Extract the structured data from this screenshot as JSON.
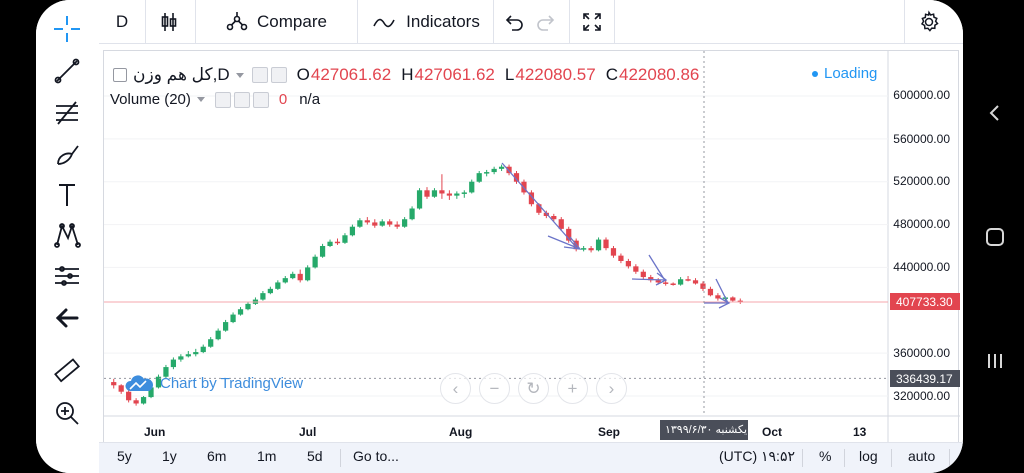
{
  "top_toolbar": {
    "interval": "D",
    "compare_label": "Compare",
    "indicators_label": "Indicators"
  },
  "legend": {
    "symbol_name": "کل هم وزن",
    "interval": "D",
    "open_key": "O",
    "open_val": "427061.62",
    "high_key": "H",
    "high_val": "427061.62",
    "low_key": "L",
    "low_val": "422080.57",
    "close_key": "C",
    "close_val": "422080.86",
    "loading_label": "Loading",
    "volume_label": "Volume (20)",
    "volume_value": "0",
    "volume_na": "n/a"
  },
  "price_axis": {
    "labels": [
      "600000.00",
      "560000.00",
      "520000.00",
      "480000.00",
      "440000.00",
      "360000.00",
      "320000.00"
    ],
    "current_price": "407733.30",
    "crosshair_price": "336439.17"
  },
  "time_axis": {
    "labels": [
      "Jun",
      "Jul",
      "Aug",
      "Sep",
      "Oct",
      "13"
    ],
    "crosshair_date": "یکشنبه ۱۳۹۹/۶/۳۰"
  },
  "watermark": {
    "text": "Chart by TradingView"
  },
  "bottom_bar": {
    "ranges": [
      "5y",
      "1y",
      "6m",
      "1m",
      "5d"
    ],
    "goto_label": "Go to...",
    "clock": "۱۹:۵۲ (UTC)",
    "percent_label": "%",
    "log_label": "log",
    "auto_label": "auto"
  },
  "colors": {
    "up": "#26a96a",
    "down": "#e2454f",
    "accent": "#2196f3",
    "arrow": "#6b74c8",
    "price_line": "#f4a7ac"
  },
  "chart_data": {
    "type": "candlestick",
    "ylim": [
      300000,
      620000
    ],
    "y_ticks": [
      320000,
      360000,
      440000,
      480000,
      520000,
      560000,
      600000
    ],
    "last_price": 407733.3,
    "crosshair_price": 336439.17,
    "candles": [
      [
        333000,
        336000,
        327000,
        330000
      ],
      [
        330000,
        331000,
        322000,
        324000
      ],
      [
        324000,
        326000,
        314000,
        316000
      ],
      [
        316000,
        318000,
        311000,
        313000
      ],
      [
        313000,
        320000,
        312000,
        319000
      ],
      [
        319000,
        330000,
        318000,
        328000
      ],
      [
        328000,
        340000,
        327000,
        338000
      ],
      [
        338000,
        349000,
        336000,
        347000
      ],
      [
        347000,
        356000,
        345000,
        354000
      ],
      [
        354000,
        359000,
        352000,
        357000
      ],
      [
        357000,
        362000,
        356000,
        359000
      ],
      [
        359000,
        364000,
        357000,
        361000
      ],
      [
        361000,
        368000,
        360000,
        366000
      ],
      [
        366000,
        375000,
        365000,
        373000
      ],
      [
        373000,
        383000,
        372000,
        381000
      ],
      [
        381000,
        391000,
        380000,
        389000
      ],
      [
        389000,
        398000,
        388000,
        396000
      ],
      [
        396000,
        403000,
        395000,
        401000
      ],
      [
        401000,
        408000,
        400000,
        406000
      ],
      [
        406000,
        412000,
        405000,
        410000
      ],
      [
        410000,
        418000,
        409000,
        416000
      ],
      [
        416000,
        422000,
        415000,
        420000
      ],
      [
        420000,
        428000,
        419000,
        426000
      ],
      [
        426000,
        432000,
        425000,
        430000
      ],
      [
        430000,
        436000,
        429000,
        434000
      ],
      [
        434000,
        438000,
        426000,
        428000
      ],
      [
        428000,
        442000,
        427000,
        440000
      ],
      [
        440000,
        452000,
        439000,
        450000
      ],
      [
        450000,
        462000,
        449000,
        460000
      ],
      [
        460000,
        466000,
        459000,
        464000
      ],
      [
        464000,
        467000,
        461000,
        463000
      ],
      [
        463000,
        472000,
        462000,
        470000
      ],
      [
        470000,
        480000,
        469000,
        478000
      ],
      [
        478000,
        486000,
        477000,
        484000
      ],
      [
        484000,
        487000,
        480000,
        482000
      ],
      [
        482000,
        485000,
        477000,
        479000
      ],
      [
        479000,
        485000,
        478000,
        483000
      ],
      [
        483000,
        485000,
        478000,
        480000
      ],
      [
        480000,
        483000,
        476000,
        478000
      ],
      [
        478000,
        487000,
        477000,
        485000
      ],
      [
        485000,
        497000,
        484000,
        495000
      ],
      [
        495000,
        514000,
        494000,
        512000
      ],
      [
        512000,
        515000,
        504000,
        506000
      ],
      [
        506000,
        514000,
        505000,
        512000
      ],
      [
        512000,
        527000,
        504000,
        509000
      ],
      [
        509000,
        512000,
        503000,
        507000
      ],
      [
        507000,
        511000,
        504000,
        509000
      ],
      [
        509000,
        512000,
        505000,
        510000
      ],
      [
        510000,
        522000,
        509000,
        520000
      ],
      [
        520000,
        530000,
        519000,
        528000
      ],
      [
        528000,
        531000,
        525000,
        529000
      ],
      [
        529000,
        534000,
        527000,
        532000
      ],
      [
        532000,
        536000,
        530000,
        534000
      ],
      [
        534000,
        536000,
        526000,
        528000
      ],
      [
        528000,
        530000,
        518000,
        520000
      ],
      [
        520000,
        522000,
        508000,
        510000
      ],
      [
        510000,
        512000,
        497000,
        499000
      ],
      [
        499000,
        500000,
        489000,
        491000
      ],
      [
        491000,
        493000,
        486000,
        488000
      ],
      [
        488000,
        490000,
        483000,
        485000
      ],
      [
        485000,
        487000,
        474000,
        476000
      ],
      [
        476000,
        478000,
        463000,
        465000
      ],
      [
        465000,
        467000,
        455000,
        457000
      ],
      [
        457000,
        460000,
        455000,
        458000
      ],
      [
        458000,
        460000,
        454000,
        456000
      ],
      [
        456000,
        468000,
        455000,
        466000
      ],
      [
        466000,
        468000,
        456000,
        458000
      ],
      [
        458000,
        460000,
        449000,
        451000
      ],
      [
        451000,
        453000,
        444000,
        446000
      ],
      [
        446000,
        448000,
        439000,
        441000
      ],
      [
        441000,
        443000,
        434000,
        436000
      ],
      [
        436000,
        438000,
        429000,
        431000
      ],
      [
        431000,
        433000,
        426000,
        428000
      ],
      [
        428000,
        430000,
        424000,
        426000
      ],
      [
        426000,
        428000,
        423000,
        425000
      ],
      [
        425000,
        426000,
        423000,
        424000
      ],
      [
        424000,
        431000,
        423000,
        429000
      ],
      [
        429000,
        432000,
        427000,
        428000
      ],
      [
        428000,
        430000,
        424000,
        425000
      ],
      [
        425000,
        427000,
        418000,
        420000
      ],
      [
        420000,
        422000,
        413000,
        414000
      ],
      [
        414000,
        416000,
        409000,
        411000
      ],
      [
        411000,
        413000,
        409000,
        412000
      ],
      [
        412000,
        413000,
        408000,
        409000
      ],
      [
        409000,
        411000,
        406000,
        407733
      ]
    ]
  }
}
